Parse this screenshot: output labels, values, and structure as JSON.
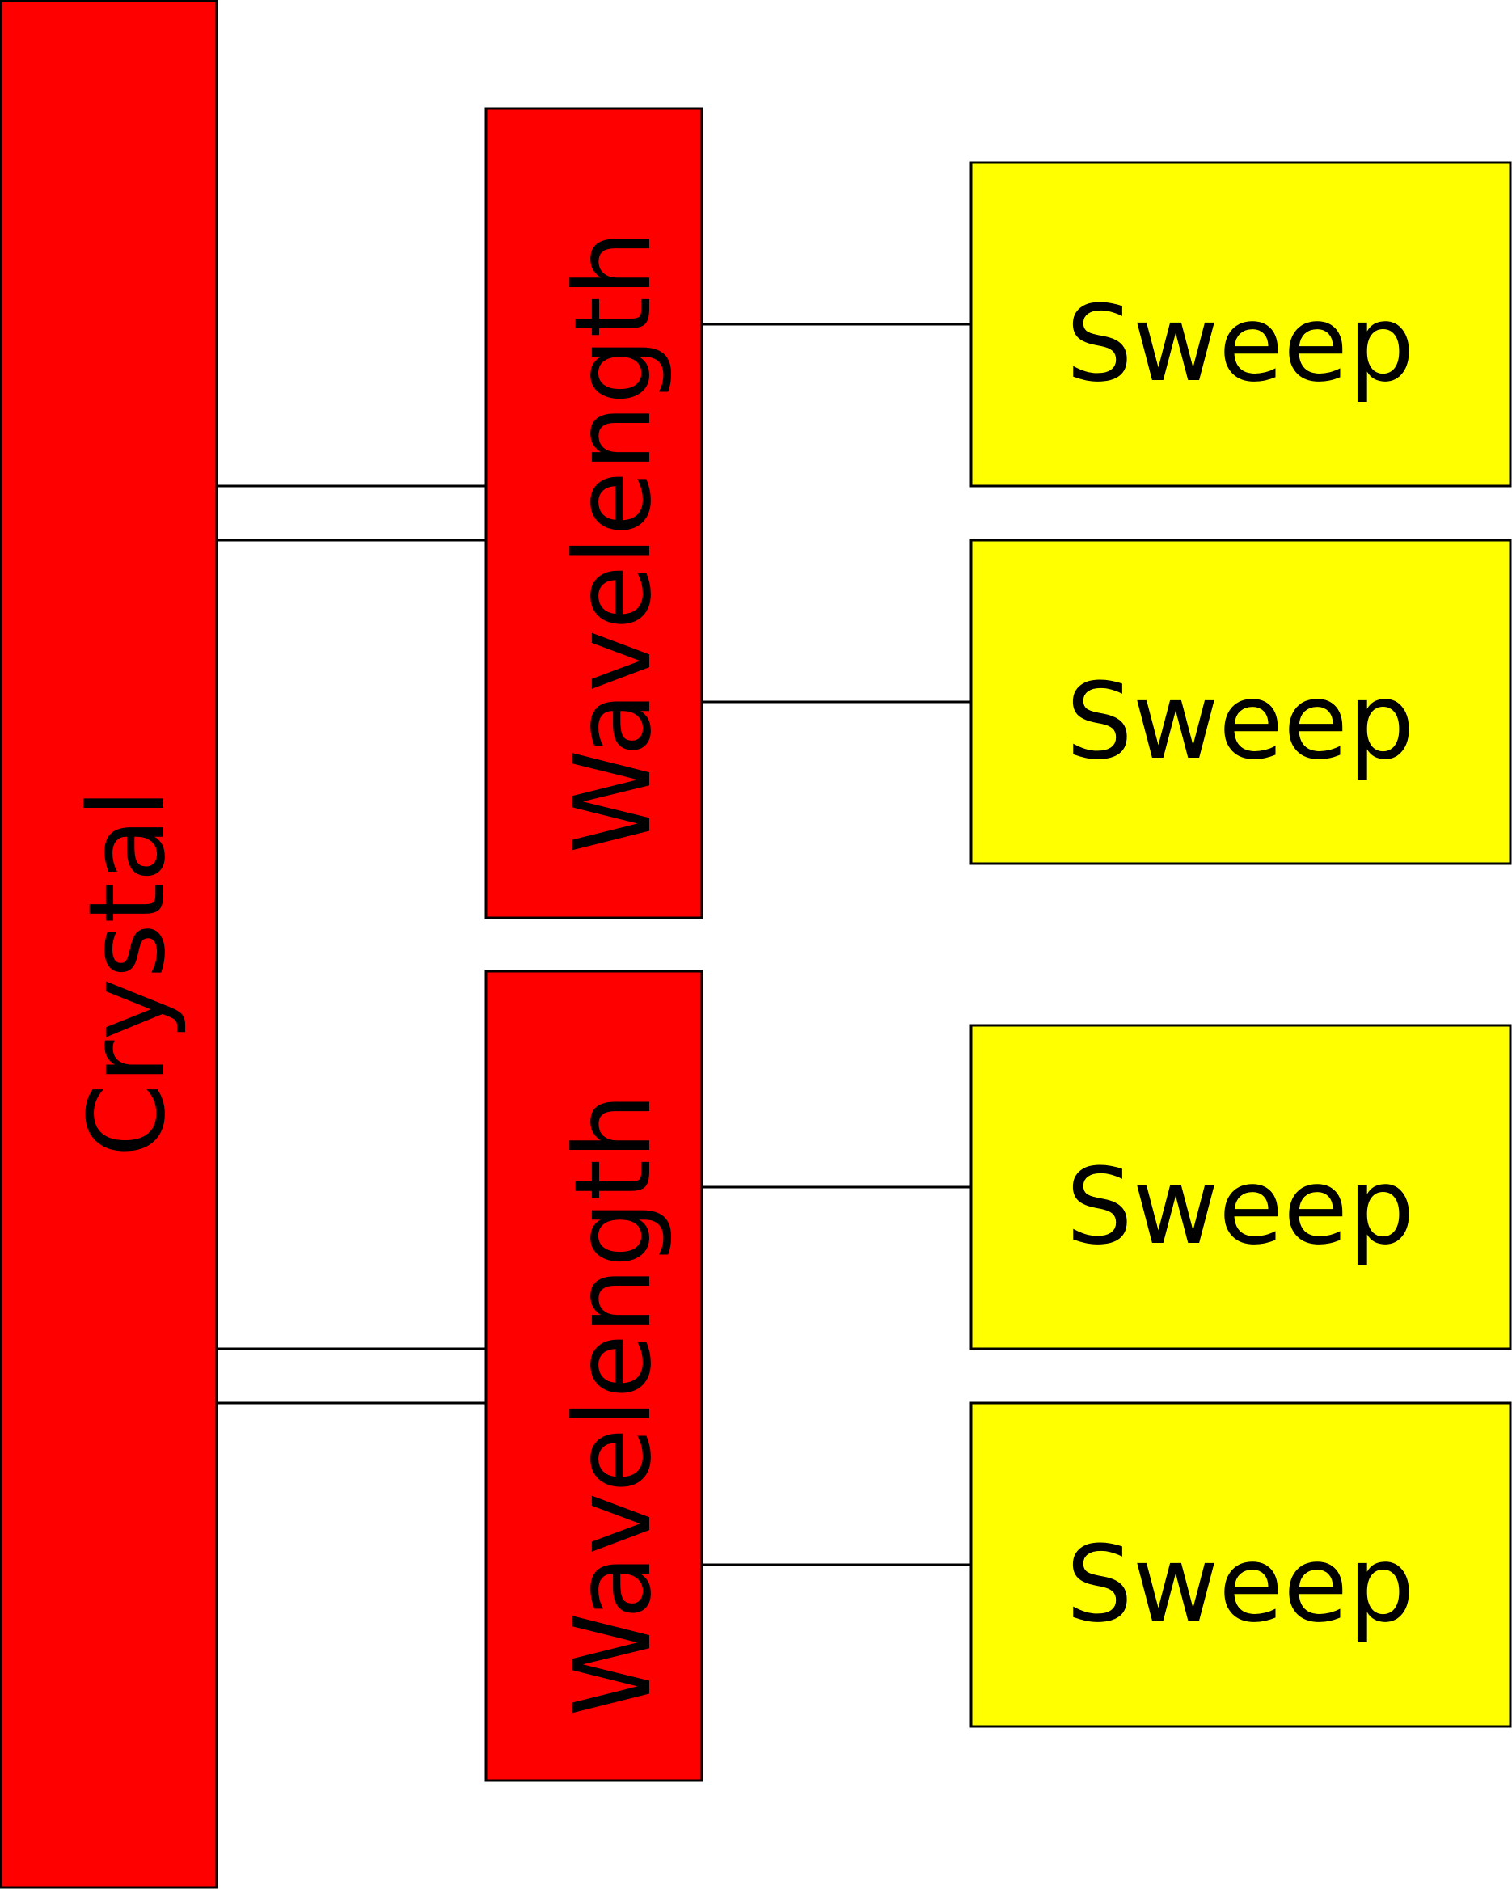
{
  "diagram": {
    "crystal": {
      "label": "Crystal",
      "fill": "#ff0000"
    },
    "wavelengths": [
      {
        "label": "Wavelength",
        "fill": "#ff0000",
        "sweeps": [
          {
            "label": "Sweep",
            "fill": "#ffff00"
          },
          {
            "label": "Sweep",
            "fill": "#ffff00"
          }
        ]
      },
      {
        "label": "Wavelength",
        "fill": "#ff0000",
        "sweeps": [
          {
            "label": "Sweep",
            "fill": "#ffff00"
          },
          {
            "label": "Sweep",
            "fill": "#ffff00"
          }
        ]
      }
    ],
    "stroke": "#000000"
  }
}
